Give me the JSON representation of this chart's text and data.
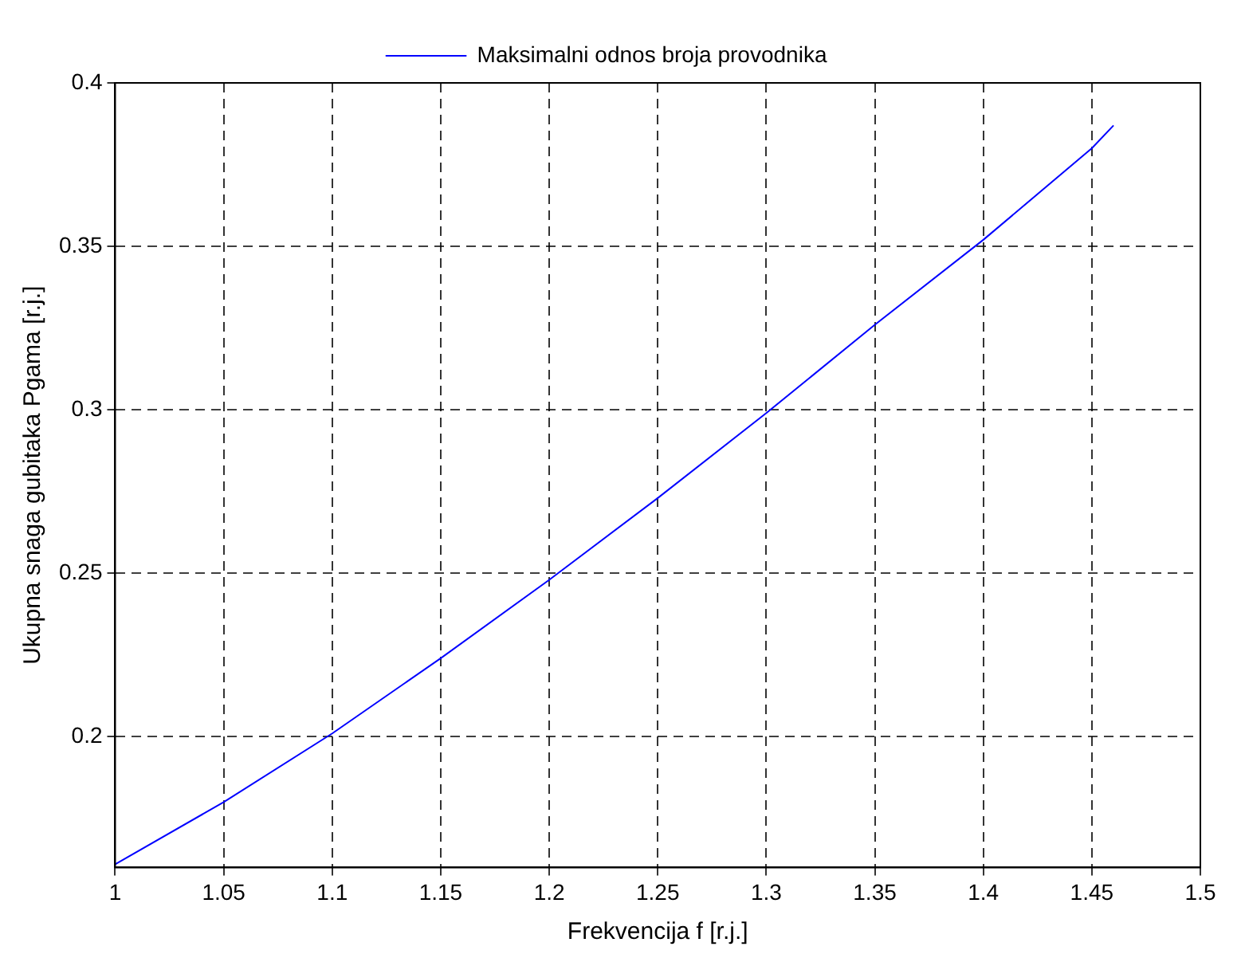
{
  "chart_data": {
    "type": "line",
    "xlabel": "Frekvencija f [r.j.]",
    "ylabel": "Ukupna snaga gubitaka Pgama [r.j.]",
    "x": [
      1.0,
      1.05,
      1.1,
      1.15,
      1.2,
      1.25,
      1.3,
      1.35,
      1.4,
      1.45,
      1.46
    ],
    "series": [
      {
        "name": "Maksimalni odnos broja provodnika",
        "color": "#0000ff",
        "values": [
          0.161,
          0.18,
          0.201,
          0.224,
          0.248,
          0.273,
          0.299,
          0.326,
          0.352,
          0.38,
          0.387
        ]
      }
    ],
    "xlim": [
      1,
      1.5
    ],
    "xticks": [
      1,
      1.05,
      1.1,
      1.15,
      1.2,
      1.25,
      1.3,
      1.35,
      1.4,
      1.45,
      1.5
    ],
    "ylim": [
      0.16,
      0.4
    ],
    "yticks": [
      0.2,
      0.25,
      0.3,
      0.35,
      0.4
    ],
    "grid": true,
    "legend": "top",
    "marker": "none",
    "line_style": "solid"
  }
}
